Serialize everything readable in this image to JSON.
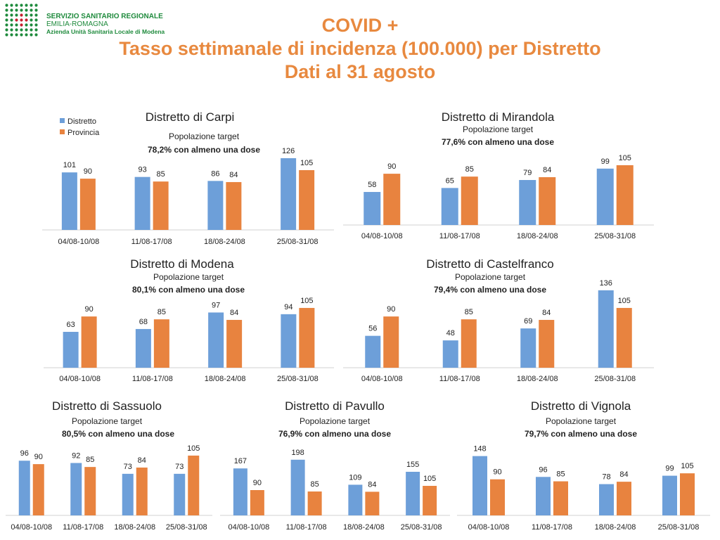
{
  "header": {
    "logo_line1": "SERVIZIO SANITARIO REGIONALE",
    "logo_line2": "EMILIA-ROMAGNA",
    "logo_line3": "Azienda Unità Sanitaria Locale di Modena",
    "title_line1": "COVID +",
    "title_line2": "Tasso settimanale di incidenza (100.000) per Distretto",
    "title_line3": "Dati al 31 agosto"
  },
  "colors": {
    "distretto": "#6d9fd9",
    "provincia": "#e8833f",
    "title": "#e8893f",
    "logo_green": "#1e8a3c",
    "logo_red": "#c8202e"
  },
  "legend": {
    "distretto": "Distretto",
    "provincia": "Provincia"
  },
  "chart_data": [
    {
      "type": "bar",
      "title": "Distretto di Carpi",
      "subtitle1": "Popolazione target",
      "subtitle2": "78,2% con almeno una dose",
      "categories": [
        "04/08-10/08",
        "11/08-17/08",
        "18/08-24/08",
        "25/08-31/08"
      ],
      "series": [
        {
          "name": "Distretto",
          "values": [
            101,
            93,
            86,
            126
          ]
        },
        {
          "name": "Provincia",
          "values": [
            90,
            85,
            84,
            105
          ]
        }
      ],
      "legend": "top-left"
    },
    {
      "type": "bar",
      "title": "Distretto di Mirandola",
      "subtitle1": "Popolazione target",
      "subtitle2": "77,6% con almeno una dose",
      "categories": [
        "04/08-10/08",
        "11/08-17/08",
        "18/08-24/08",
        "25/08-31/08"
      ],
      "series": [
        {
          "name": "Distretto",
          "values": [
            58,
            65,
            79,
            99
          ]
        },
        {
          "name": "Provincia",
          "values": [
            90,
            85,
            84,
            105
          ]
        }
      ]
    },
    {
      "type": "bar",
      "title": "Distretto di Modena",
      "subtitle1": "Popolazione target",
      "subtitle2": "80,1% con almeno una dose",
      "categories": [
        "04/08-10/08",
        "11/08-17/08",
        "18/08-24/08",
        "25/08-31/08"
      ],
      "series": [
        {
          "name": "Distretto",
          "values": [
            63,
            68,
            97,
            94
          ]
        },
        {
          "name": "Provincia",
          "values": [
            90,
            85,
            84,
            105
          ]
        }
      ]
    },
    {
      "type": "bar",
      "title": "Distretto di Castelfranco",
      "subtitle1": "Popolazione target",
      "subtitle2": "79,4% con almeno una dose",
      "categories": [
        "04/08-10/08",
        "11/08-17/08",
        "18/08-24/08",
        "25/08-31/08"
      ],
      "series": [
        {
          "name": "Distretto",
          "values": [
            56,
            48,
            69,
            136
          ]
        },
        {
          "name": "Provincia",
          "values": [
            90,
            85,
            84,
            105
          ]
        }
      ]
    },
    {
      "type": "bar",
      "title": "Distretto di Sassuolo",
      "subtitle1": "Popolazione target",
      "subtitle2": "80,5% con almeno una dose",
      "categories": [
        "04/08-10/08",
        "11/08-17/08",
        "18/08-24/08",
        "25/08-31/08"
      ],
      "series": [
        {
          "name": "Distretto",
          "values": [
            96,
            92,
            73,
            73
          ]
        },
        {
          "name": "Provincia",
          "values": [
            90,
            85,
            84,
            105
          ]
        }
      ]
    },
    {
      "type": "bar",
      "title": "Distretto di Pavullo",
      "subtitle1": "Popolazione target",
      "subtitle2": "76,9% con almeno una dose",
      "categories": [
        "04/08-10/08",
        "11/08-17/08",
        "18/08-24/08",
        "25/08-31/08"
      ],
      "series": [
        {
          "name": "Distretto",
          "values": [
            167,
            198,
            109,
            155
          ]
        },
        {
          "name": "Provincia",
          "values": [
            90,
            85,
            84,
            105
          ]
        }
      ]
    },
    {
      "type": "bar",
      "title": "Distretto di Vignola",
      "subtitle1": "Popolazione target",
      "subtitle2": "79,7% con almeno una dose",
      "categories": [
        "04/08-10/08",
        "11/08-17/08",
        "18/08-24/08",
        "25/08-31/08"
      ],
      "series": [
        {
          "name": "Distretto",
          "values": [
            148,
            96,
            78,
            99
          ]
        },
        {
          "name": "Provincia",
          "values": [
            90,
            85,
            84,
            105
          ]
        }
      ]
    }
  ]
}
